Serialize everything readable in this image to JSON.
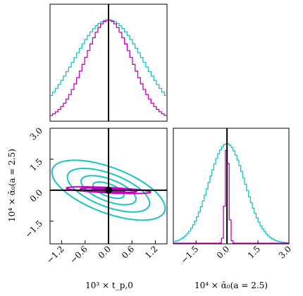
{
  "colors": {
    "wide": "#17c3c3",
    "narrow": "#c400c4",
    "marker": "#000000"
  },
  "chart_data": [
    {
      "type": "histogram",
      "panel": "marginal t_p0",
      "xlim": [
        -1.5,
        1.5
      ],
      "truth": 0.0,
      "series": [
        {
          "color_key": "wide",
          "mean": 0.0,
          "sigma": 0.88
        },
        {
          "color_key": "narrow",
          "mean": 0.0,
          "sigma": 0.6
        }
      ]
    },
    {
      "type": "contour",
      "panel": "joint t_p0 vs alpha0",
      "xlim": [
        -1.5,
        1.5
      ],
      "ylim": [
        -2.6,
        3.0
      ],
      "xticks": [
        -1.2,
        -0.6,
        0.0,
        0.6,
        1.2
      ],
      "xtick_labels": [
        "−1.2",
        "−0.6",
        "0.0",
        "0.6",
        "1.2"
      ],
      "yticks": [
        3.0,
        1.5,
        0.0,
        -1.5
      ],
      "ytick_labels": [
        "3.0",
        "1.5",
        "0.0",
        "−1.5"
      ],
      "xlabel": "10³ × t_p,0",
      "ylabel": "10⁴ × ᾱ₀(a = 2.5)",
      "truth": [
        0.0,
        0.0
      ],
      "series": [
        {
          "color_key": "wide",
          "sx": 0.88,
          "sy": 0.88,
          "rho": -0.6,
          "levels": [
            0.45,
            0.8,
            1.2,
            1.65
          ]
        },
        {
          "color_key": "narrow",
          "sx": 0.6,
          "sy": 0.09,
          "rho": -0.6,
          "levels": [
            0.7,
            1.2,
            1.8
          ]
        }
      ]
    },
    {
      "type": "histogram",
      "panel": "marginal alpha0",
      "xlim": [
        -2.6,
        3.0
      ],
      "xticks": [
        -1.5,
        0.0,
        1.5,
        3.0
      ],
      "xtick_labels": [
        "−1.5",
        "0.0",
        "1.5",
        "3.0"
      ],
      "xlabel": "10⁴ × ᾱ₀(a = 2.5)",
      "truth": 0.0,
      "series": [
        {
          "color_key": "wide",
          "mean": 0.0,
          "sigma": 0.88
        },
        {
          "color_key": "narrow",
          "mean": 0.0,
          "sigma": 0.09
        }
      ]
    }
  ]
}
